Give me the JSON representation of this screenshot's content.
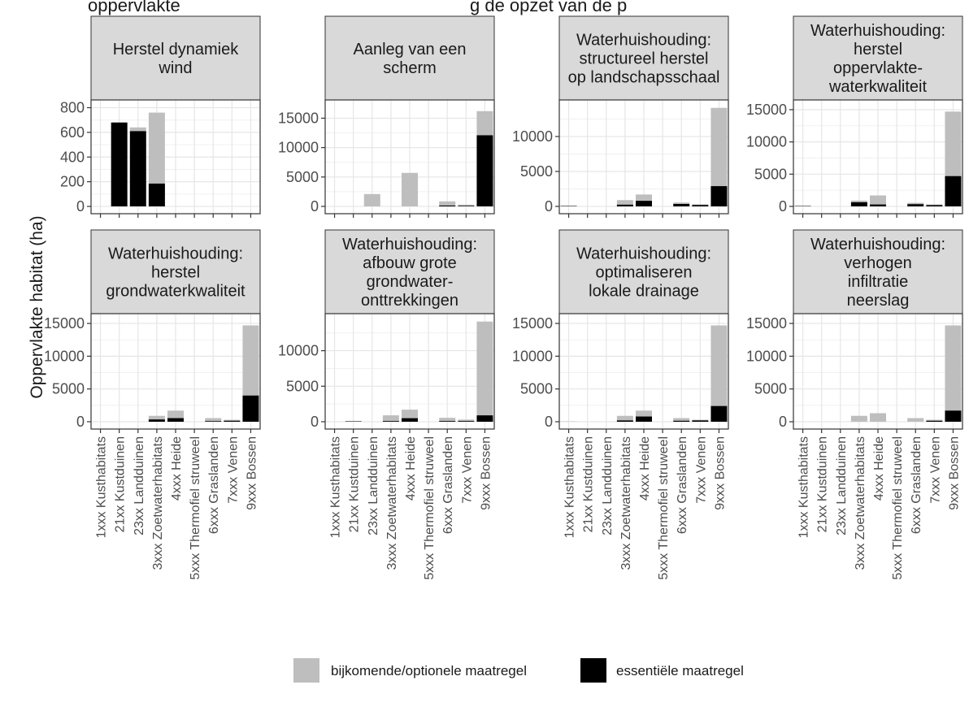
{
  "figure": {
    "top_title_left": "oppervlakte",
    "top_title_right": "g de opzet van de p"
  },
  "colors": {
    "optional": "#bebebe",
    "essential": "#000000",
    "strip": "#d9d9d9",
    "grid": "#e6e6e6",
    "text": "#1a1a1a",
    "tick": "#4d4d4d"
  },
  "chart_data": {
    "type": "bar",
    "stacked": true,
    "ylabel": "Oppervlakte habitat (ha)",
    "categories": [
      "1xxx Kusthabitats",
      "21xx Kustduinen",
      "23xx Landduinen",
      "3xxx Zoetwaterhabitats",
      "4xxx Heide",
      "5xxx Thermofiel struweel",
      "6xxx Graslanden",
      "7xxx Venen",
      "9xxx Bossen"
    ],
    "legend": [
      {
        "key": "optional",
        "label": "bijkomende/optionele maatregel"
      },
      {
        "key": "essential",
        "label": "essentiële maatregel"
      }
    ],
    "legend_position": "bottom",
    "grid": true,
    "panels": [
      {
        "title_lines": [
          "Herstel dynamiek",
          "wind"
        ],
        "ylim": [
          0,
          810
        ],
        "yticks": [
          0,
          200,
          400,
          600,
          800
        ],
        "essential": [
          0,
          680,
          610,
          185,
          0,
          0,
          0,
          0,
          0
        ],
        "total": [
          0,
          680,
          640,
          760,
          0,
          0,
          0,
          0,
          0
        ]
      },
      {
        "title_lines": [
          "Aanleg van een",
          "scherm"
        ],
        "ylim": [
          0,
          17000
        ],
        "yticks": [
          0,
          5000,
          10000,
          15000
        ],
        "essential": [
          0,
          0,
          0,
          0,
          0,
          0,
          150,
          100,
          12100
        ],
        "total": [
          0,
          0,
          2100,
          0,
          5700,
          0,
          850,
          300,
          16200
        ]
      },
      {
        "title_lines": [
          "Waterhuishouding:",
          "structureel herstel",
          "op landschapsschaal"
        ],
        "ylim": [
          0,
          14300
        ],
        "yticks": [
          0,
          5000,
          10000
        ],
        "essential": [
          50,
          0,
          0,
          250,
          800,
          0,
          350,
          200,
          2900
        ],
        "total": [
          100,
          0,
          0,
          900,
          1700,
          0,
          550,
          300,
          14100
        ]
      },
      {
        "title_lines": [
          "Waterhuishouding:",
          "herstel",
          "oppervlakte-",
          "waterkwaliteit"
        ],
        "ylim": [
          0,
          15500
        ],
        "yticks": [
          0,
          5000,
          10000,
          15000
        ],
        "essential": [
          50,
          0,
          0,
          650,
          300,
          0,
          350,
          200,
          4700
        ],
        "total": [
          100,
          0,
          0,
          900,
          1700,
          0,
          550,
          300,
          14700
        ]
      },
      {
        "title_lines": [
          "Waterhuishouding:",
          "herstel",
          "grondwaterkwaliteit"
        ],
        "ylim": [
          0,
          15500
        ],
        "yticks": [
          0,
          5000,
          10000,
          15000
        ],
        "essential": [
          0,
          0,
          0,
          350,
          550,
          0,
          100,
          150,
          4000
        ],
        "total": [
          0,
          0,
          0,
          900,
          1700,
          0,
          550,
          300,
          14700
        ]
      },
      {
        "title_lines": [
          "Waterhuishouding:",
          "afbouw grote",
          "grondwater-",
          "onttrekkingen"
        ],
        "ylim": [
          0,
          14300
        ],
        "yticks": [
          0,
          5000,
          10000
        ],
        "essential": [
          0,
          50,
          0,
          100,
          500,
          0,
          100,
          100,
          900
        ],
        "total": [
          0,
          100,
          0,
          900,
          1700,
          0,
          550,
          300,
          14100
        ]
      },
      {
        "title_lines": [
          "Waterhuishouding:",
          "optimaliseren",
          "lokale drainage"
        ],
        "ylim": [
          0,
          15500
        ],
        "yticks": [
          0,
          5000,
          10000,
          15000
        ],
        "essential": [
          0,
          0,
          0,
          200,
          800,
          0,
          150,
          200,
          2400
        ],
        "total": [
          50,
          0,
          0,
          900,
          1700,
          0,
          550,
          300,
          14700
        ]
      },
      {
        "title_lines": [
          "Waterhuishouding:",
          "verhogen",
          "infiltratie",
          "neerslag"
        ],
        "ylim": [
          0,
          15500
        ],
        "yticks": [
          0,
          5000,
          10000,
          15000
        ],
        "essential": [
          0,
          0,
          0,
          0,
          0,
          0,
          0,
          150,
          1700
        ],
        "total": [
          0,
          0,
          0,
          900,
          1300,
          0,
          550,
          300,
          14700
        ]
      }
    ]
  }
}
